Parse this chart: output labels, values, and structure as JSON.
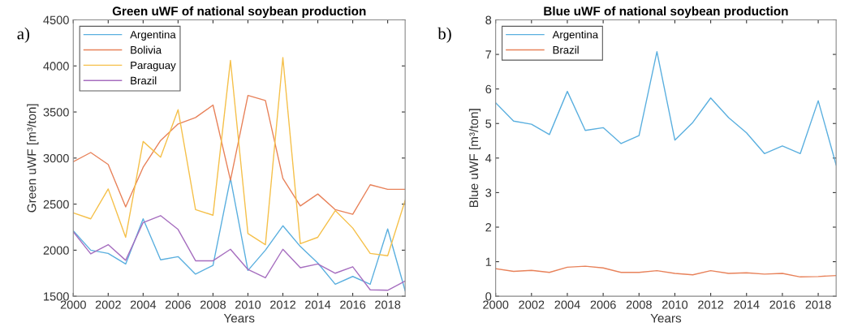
{
  "chart_data": [
    {
      "type": "line",
      "title": "Green uWF of national soybean production",
      "xlabel": "Years",
      "ylabel": "Green uWF [m³/ton]",
      "annotations": [
        "a)"
      ],
      "x": [
        2000,
        2001,
        2002,
        2003,
        2004,
        2005,
        2006,
        2007,
        2008,
        2009,
        2010,
        2011,
        2012,
        2013,
        2014,
        2015,
        2016,
        2017,
        2018,
        2019
      ],
      "xlim": [
        2000,
        2019
      ],
      "xticks": [
        2000,
        2002,
        2004,
        2006,
        2008,
        2010,
        2012,
        2014,
        2016,
        2018
      ],
      "ylim": [
        1500,
        4500
      ],
      "yticks": [
        1500,
        2000,
        2500,
        3000,
        3500,
        4000,
        4500
      ],
      "grid": false,
      "legend": "top left",
      "series": [
        {
          "name": "Argentina",
          "color": "#5aafdf",
          "values": [
            2210,
            2000,
            1965,
            1850,
            2340,
            1895,
            1930,
            1740,
            1835,
            2780,
            1780,
            2000,
            2265,
            2040,
            1860,
            1630,
            1715,
            1630,
            2230,
            1560
          ]
        },
        {
          "name": "Bolivia",
          "color": "#e8825a",
          "values": [
            2960,
            3060,
            2930,
            2470,
            2900,
            3190,
            3370,
            3440,
            3575,
            2760,
            3680,
            3625,
            2780,
            2480,
            2610,
            2440,
            2390,
            2710,
            2660,
            2660
          ]
        },
        {
          "name": "Paraguay",
          "color": "#f5c04a",
          "values": [
            2405,
            2340,
            2665,
            2140,
            3180,
            3010,
            3525,
            2440,
            2380,
            4060,
            2180,
            2060,
            4090,
            2070,
            2140,
            2430,
            2240,
            1965,
            1940,
            2540
          ]
        },
        {
          "name": "Brazil",
          "color": "#a66ebf",
          "values": [
            2200,
            1960,
            2060,
            1890,
            2300,
            2375,
            2225,
            1885,
            1885,
            2010,
            1790,
            1700,
            2010,
            1810,
            1850,
            1750,
            1820,
            1570,
            1565,
            1665
          ]
        }
      ]
    },
    {
      "type": "line",
      "title": "Blue uWF of national soybean production",
      "xlabel": "Years",
      "ylabel": "Blue uWF [m³/ton]",
      "annotations": [
        "b)"
      ],
      "x": [
        2000,
        2001,
        2002,
        2003,
        2004,
        2005,
        2006,
        2007,
        2008,
        2009,
        2010,
        2011,
        2012,
        2013,
        2014,
        2015,
        2016,
        2017,
        2018,
        2019
      ],
      "xlim": [
        2000,
        2019
      ],
      "xticks": [
        2000,
        2002,
        2004,
        2006,
        2008,
        2010,
        2012,
        2014,
        2016,
        2018
      ],
      "ylim": [
        0,
        8
      ],
      "yticks": [
        0,
        1,
        2,
        3,
        4,
        5,
        6,
        7,
        8
      ],
      "grid": false,
      "legend": "top left",
      "series": [
        {
          "name": "Argentina",
          "color": "#5aafdf",
          "values": [
            5.6,
            5.07,
            4.98,
            4.68,
            5.93,
            4.8,
            4.88,
            4.42,
            4.65,
            7.08,
            4.52,
            5.03,
            5.74,
            5.17,
            4.73,
            4.13,
            4.35,
            4.13,
            5.66,
            3.8
          ]
        },
        {
          "name": "Brazil",
          "color": "#e8825a",
          "values": [
            0.8,
            0.72,
            0.75,
            0.69,
            0.84,
            0.87,
            0.82,
            0.69,
            0.69,
            0.74,
            0.66,
            0.62,
            0.74,
            0.66,
            0.68,
            0.64,
            0.66,
            0.56,
            0.57,
            0.6
          ]
        }
      ]
    }
  ]
}
